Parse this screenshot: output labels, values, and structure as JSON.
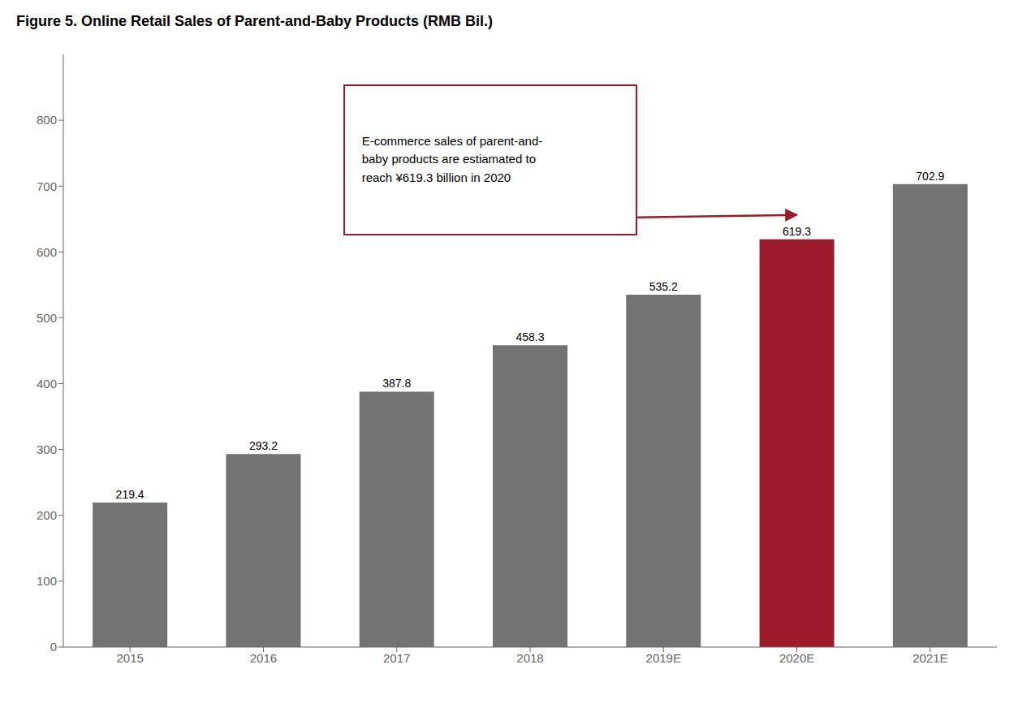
{
  "chart_data": {
    "type": "bar",
    "title": "Figure 5. Online Retail Sales of Parent-and-Baby Products (RMB Bil.)",
    "categories": [
      "2015",
      "2016",
      "2017",
      "2018",
      "2019E",
      "2020E",
      "2021E"
    ],
    "values": [
      219.4,
      293.2,
      387.8,
      458.3,
      535.2,
      619.3,
      702.9
    ],
    "colors": [
      "#737373",
      "#737373",
      "#737373",
      "#737373",
      "#737373",
      "#9B1B2A",
      "#737373"
    ],
    "ylim": [
      0,
      900
    ],
    "yticks": [
      0,
      100,
      200,
      300,
      400,
      500,
      600,
      700,
      800
    ],
    "grid": false,
    "data_labels": true,
    "annotations": [
      {
        "text": "E-commerce sales of parent-and-\nbaby products are estiamated to\nreach ¥619.3 billion in 2020",
        "x": "2020E"
      }
    ]
  }
}
